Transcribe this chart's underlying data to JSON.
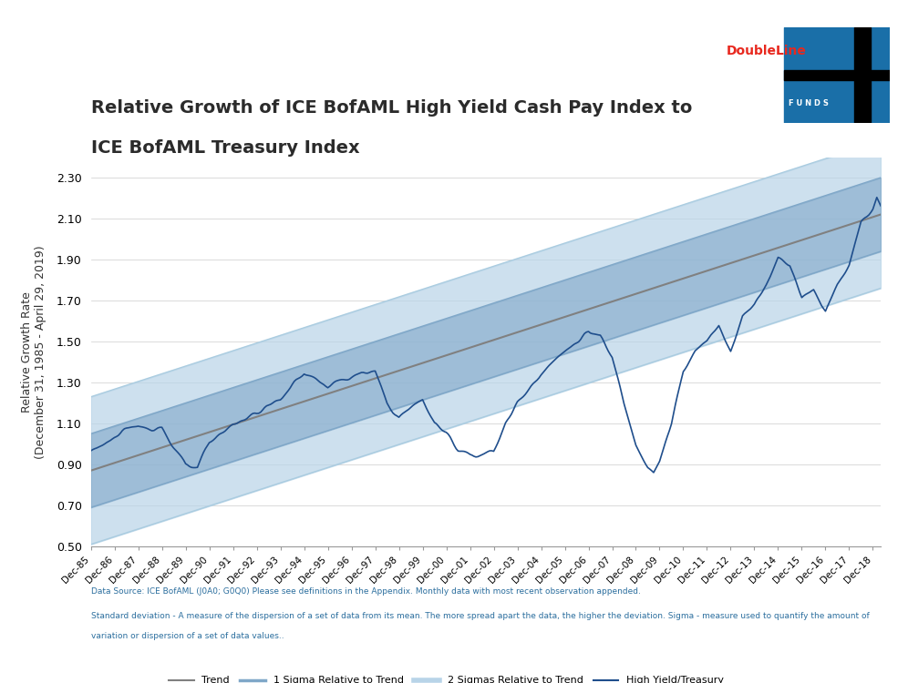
{
  "title_line1": "Relative Growth of ICE BofAML High Yield Cash Pay Index to",
  "title_line2": "ICE BofAML Treasury Index",
  "ylabel": "Relative Growth Rate\n(December 31, 1985 - April 29, 2019)",
  "xlabel": "",
  "ylim": [
    0.5,
    2.4
  ],
  "yticks": [
    0.5,
    0.7,
    0.9,
    1.1,
    1.3,
    1.5,
    1.7,
    1.9,
    2.1,
    2.3
  ],
  "background_color": "#ffffff",
  "title_color": "#2b2b2b",
  "trend_color": "#808080",
  "sigma1_color": "#7fa7c8",
  "sigma2_color": "#b8d4e8",
  "hy_color": "#1f4e8c",
  "footnote_color": "#2b6e9e",
  "footnote1": "Data Source: ICE BofAML (J0A0; G0Q0) Please see definitions in the Appendix. Monthly data with most recent observation appended.",
  "footnote2": "Standard deviation - A measure of the dispersion of a set of data from its mean. The more spread apart the data, the higher the deviation. Sigma - measure used to quantify the amount of",
  "footnote3": "variation or dispersion of a set of data values..",
  "legend_labels": [
    "Trend",
    "1 Sigma Relative to Trend",
    "2 Sigmas Relative to Trend",
    "High Yield/Treasury"
  ],
  "start_year": 1985,
  "end_year": 2019,
  "n_months": 412
}
